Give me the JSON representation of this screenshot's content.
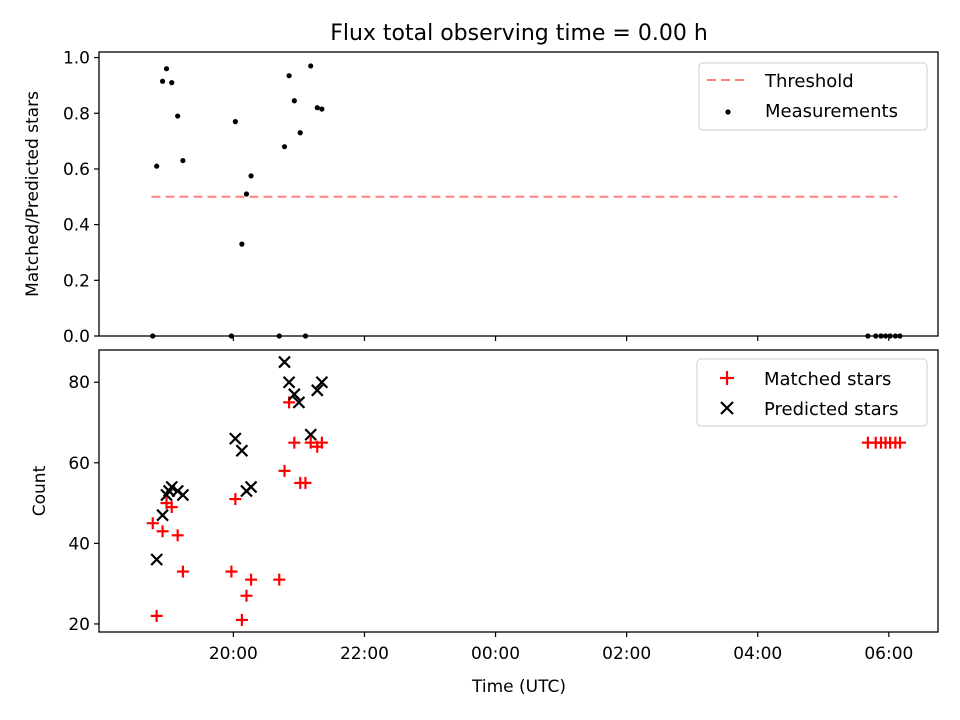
{
  "title": "Flux total observing time = 0.00 h",
  "chart_data": [
    {
      "type": "scatter",
      "panel": "top",
      "ylabel": "Matched/Predicted stars",
      "ylim": [
        0,
        1.02
      ],
      "yticks": [
        "0.0",
        "0.2",
        "0.4",
        "0.6",
        "0.8",
        "1.0"
      ],
      "ytick_values": [
        0,
        0.2,
        0.4,
        0.6,
        0.8,
        1.0
      ],
      "x_tick_positions": [
        20,
        22,
        24,
        26,
        28,
        30
      ],
      "legend_position": "top-right",
      "threshold": {
        "name": "Threshold",
        "y": 0.5,
        "x_range": [
          18.75,
          30.13
        ],
        "color": "#ff8080"
      },
      "series": [
        {
          "name": "Measurements",
          "color": "#000000",
          "points": [
            [
              18.77,
              0.0
            ],
            [
              18.83,
              0.61
            ],
            [
              18.92,
              0.915
            ],
            [
              18.98,
              0.96
            ],
            [
              19.06,
              0.91
            ],
            [
              19.15,
              0.79
            ],
            [
              19.23,
              0.63
            ],
            [
              19.97,
              0.0
            ],
            [
              20.03,
              0.77
            ],
            [
              20.13,
              0.33
            ],
            [
              20.2,
              0.51
            ],
            [
              20.27,
              0.575
            ],
            [
              20.7,
              0.0
            ],
            [
              20.78,
              0.68
            ],
            [
              20.85,
              0.935
            ],
            [
              20.93,
              0.845
            ],
            [
              21.02,
              0.73
            ],
            [
              21.1,
              0.0
            ],
            [
              21.18,
              0.97
            ],
            [
              21.28,
              0.82
            ],
            [
              21.35,
              0.815
            ],
            [
              29.68,
              0.0
            ],
            [
              29.8,
              0.0
            ],
            [
              29.88,
              0.0
            ],
            [
              29.95,
              0.0
            ],
            [
              30.02,
              0.0
            ],
            [
              30.1,
              0.0
            ],
            [
              30.17,
              0.0
            ]
          ]
        }
      ]
    },
    {
      "type": "scatter",
      "panel": "bottom",
      "xlabel": "Time (UTC)",
      "ylabel": "Count",
      "ylim": [
        18,
        88
      ],
      "yticks": [
        "20",
        "40",
        "60",
        "80"
      ],
      "ytick_values": [
        20,
        40,
        60,
        80
      ],
      "x_tick_values": [
        20,
        22,
        24,
        26,
        28,
        30
      ],
      "x_tick_labels": [
        "20:00",
        "22:00",
        "00:00",
        "02:00",
        "04:00",
        "06:00"
      ],
      "xlim": [
        17.95,
        30.75
      ],
      "legend_position": "top-right",
      "series": [
        {
          "name": "Matched stars",
          "marker": "plus",
          "color": "#ff0000",
          "points": [
            [
              18.77,
              45
            ],
            [
              18.83,
              22
            ],
            [
              18.92,
              43
            ],
            [
              18.98,
              50
            ],
            [
              19.06,
              49
            ],
            [
              19.15,
              42
            ],
            [
              19.23,
              33
            ],
            [
              19.97,
              33
            ],
            [
              20.03,
              51
            ],
            [
              20.13,
              21
            ],
            [
              20.2,
              27
            ],
            [
              20.27,
              31
            ],
            [
              20.7,
              31
            ],
            [
              20.78,
              58
            ],
            [
              20.85,
              75
            ],
            [
              20.93,
              65
            ],
            [
              21.02,
              55
            ],
            [
              21.1,
              55
            ],
            [
              21.18,
              65
            ],
            [
              21.28,
              64
            ],
            [
              21.35,
              65
            ],
            [
              29.68,
              65
            ],
            [
              29.8,
              65
            ],
            [
              29.88,
              65
            ],
            [
              29.95,
              65
            ],
            [
              30.02,
              65
            ],
            [
              30.1,
              65
            ],
            [
              30.17,
              65
            ]
          ]
        },
        {
          "name": "Predicted stars",
          "marker": "x",
          "color": "#000000",
          "points": [
            [
              18.83,
              36
            ],
            [
              18.92,
              47
            ],
            [
              18.98,
              52
            ],
            [
              19.02,
              53
            ],
            [
              19.06,
              54
            ],
            [
              19.15,
              53
            ],
            [
              19.23,
              52
            ],
            [
              20.03,
              66
            ],
            [
              20.13,
              63
            ],
            [
              20.2,
              53
            ],
            [
              20.27,
              54
            ],
            [
              20.78,
              85
            ],
            [
              20.85,
              80
            ],
            [
              20.93,
              77
            ],
            [
              21.0,
              75
            ],
            [
              21.18,
              67
            ],
            [
              21.28,
              78
            ],
            [
              21.35,
              80
            ]
          ]
        }
      ]
    }
  ]
}
